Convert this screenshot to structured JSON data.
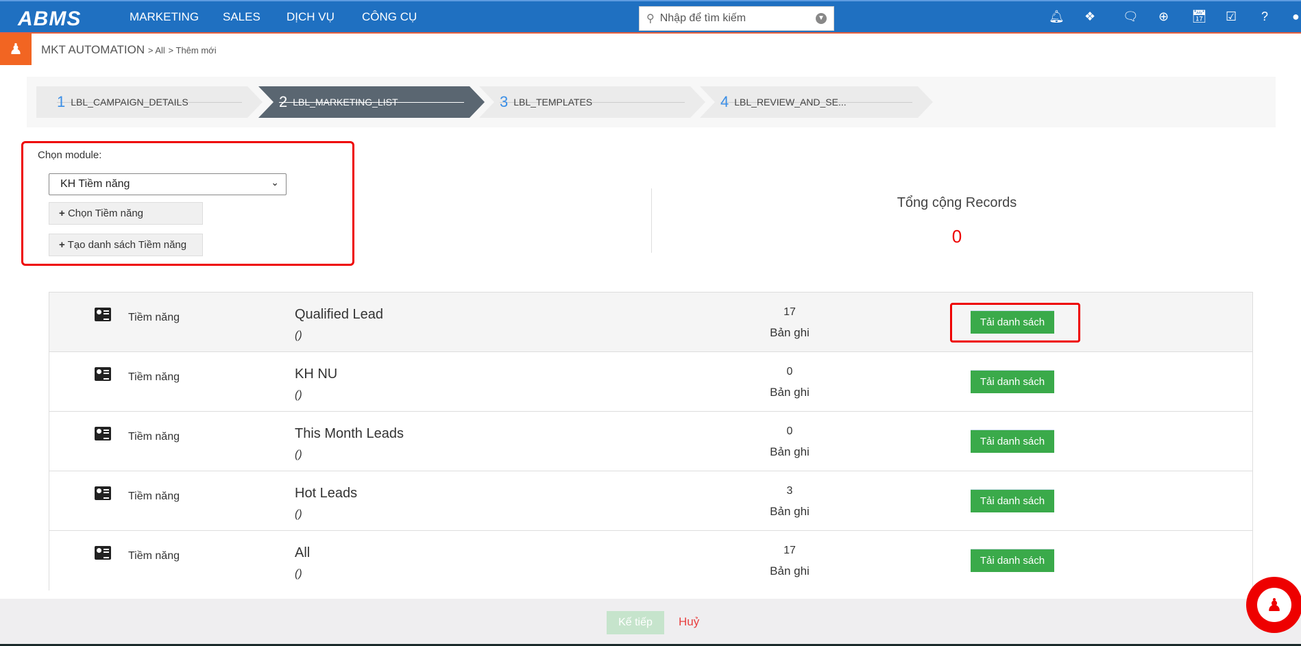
{
  "nav": {
    "logo": "ABMS",
    "menu": [
      "MARKETING",
      "SALES",
      "DỊCH VỤ",
      "CÔNG CỤ"
    ],
    "search_placeholder": "Nhập để tìm kiếm",
    "icons": [
      "bell-icon",
      "cubes-icon",
      "comments-icon",
      "plus-circle-icon",
      "calendar-icon",
      "checkbox-icon",
      "help-icon",
      "user-icon"
    ]
  },
  "breadcrumb": {
    "module": "MKT AUTOMATION",
    "items": [
      "All",
      "Thêm mới"
    ]
  },
  "wizard": [
    {
      "num": "1",
      "label": "LBL_CAMPAIGN_DETAILS"
    },
    {
      "num": "2",
      "label": "LBL_MARKETING_LIST",
      "active": true
    },
    {
      "num": "3",
      "label": "LBL_TEMPLATES"
    },
    {
      "num": "4",
      "label": "LBL_REVIEW_AND_SE..."
    }
  ],
  "module": {
    "label": "Chọn module:",
    "selected": "KH Tiềm năng",
    "choose_button": "Chọn Tiềm năng",
    "create_button": "Tạo danh sách Tiềm năng"
  },
  "total": {
    "label": "Tổng cộng Records",
    "value": "0"
  },
  "rows": [
    {
      "module": "Tiềm năng",
      "name": "Qualified Lead",
      "sub": "()",
      "count": "17",
      "unit": "Bản ghi",
      "button": "Tải danh sách"
    },
    {
      "module": "Tiềm năng",
      "name": "KH NU",
      "sub": "()",
      "count": "0",
      "unit": "Bản ghi",
      "button": "Tải danh sách"
    },
    {
      "module": "Tiềm năng",
      "name": "This Month Leads",
      "sub": "()",
      "count": "0",
      "unit": "Bản ghi",
      "button": "Tải danh sách"
    },
    {
      "module": "Tiềm năng",
      "name": "Hot Leads",
      "sub": "()",
      "count": "3",
      "unit": "Bản ghi",
      "button": "Tải danh sách"
    },
    {
      "module": "Tiềm năng",
      "name": "All",
      "sub": "()",
      "count": "17",
      "unit": "Bản ghi",
      "button": "Tải danh sách"
    }
  ],
  "footer": {
    "next": "Kế tiếp",
    "cancel": "Huỷ"
  },
  "colors": {
    "nav": "#1f70c1",
    "accent": "#f26522",
    "success": "#3aaa4a",
    "highlight": "#ee0000"
  }
}
